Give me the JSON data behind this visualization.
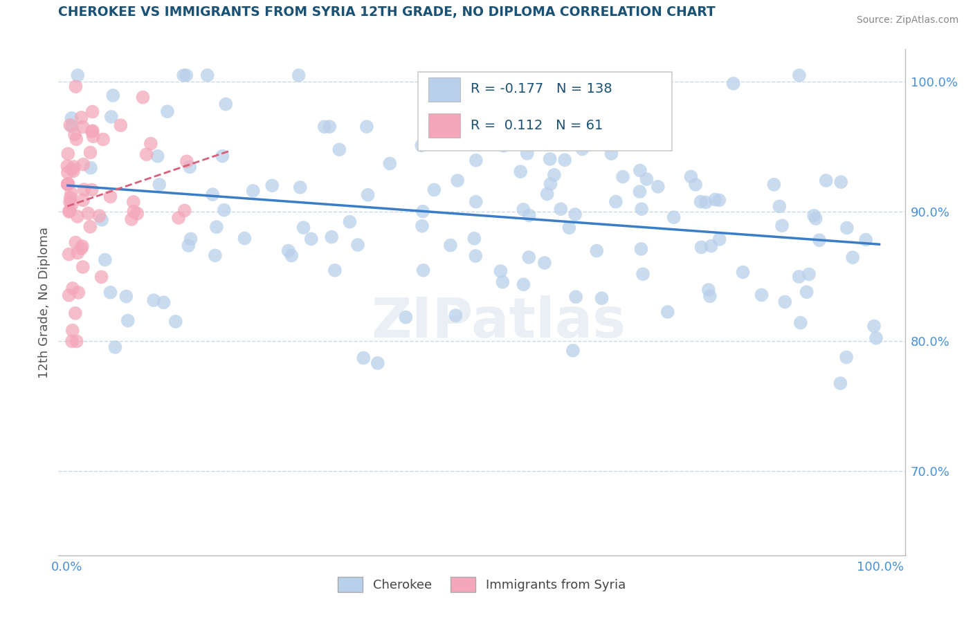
{
  "title": "CHEROKEE VS IMMIGRANTS FROM SYRIA 12TH GRADE, NO DIPLOMA CORRELATION CHART",
  "source": "Source: ZipAtlas.com",
  "ylabel": "12th Grade, No Diploma",
  "legend_labels": [
    "Cherokee",
    "Immigrants from Syria"
  ],
  "r_cherokee": -0.177,
  "n_cherokee": 138,
  "r_syria": 0.112,
  "n_syria": 61,
  "title_color": "#1a5276",
  "cherokee_color": "#b8d0ea",
  "syria_color": "#f4a7b9",
  "cherokee_line_color": "#3a7dc9",
  "syria_line_color": "#d9607a",
  "background_color": "#ffffff",
  "watermark": "ZIPatlas",
  "ylim_low": 0.635,
  "ylim_high": 1.025,
  "xlim_low": -0.01,
  "xlim_high": 1.03
}
